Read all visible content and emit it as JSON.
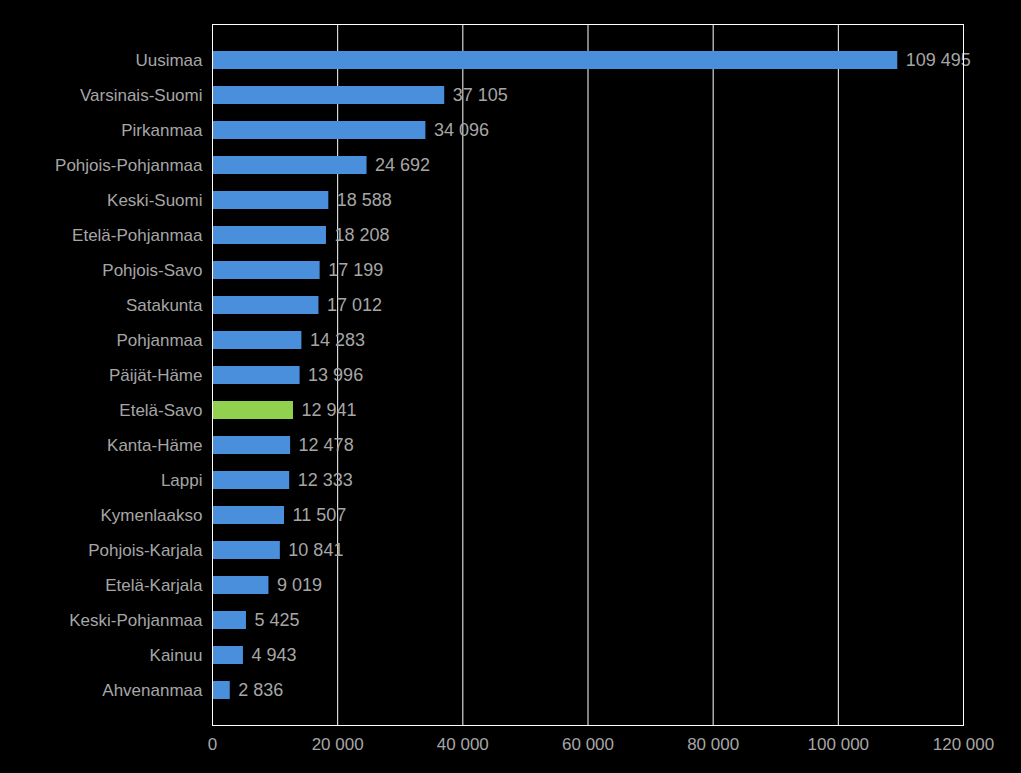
{
  "chart_data": {
    "type": "bar",
    "orientation": "horizontal",
    "categories": [
      "Uusimaa",
      "Varsinais-Suomi",
      "Pirkanmaa",
      "Pohjois-Pohjanmaa",
      "Keski-Suomi",
      "Etelä-Pohjanmaa",
      "Pohjois-Savo",
      "Satakunta",
      "Pohjanmaa",
      "Päijät-Häme",
      "Etelä-Savo",
      "Kanta-Häme",
      "Lappi",
      "Kymenlaakso",
      "Pohjois-Karjala",
      "Etelä-Karjala",
      "Keski-Pohjanmaa",
      "Kainuu",
      "Ahvenanmaa"
    ],
    "values": [
      109495,
      37105,
      34096,
      24692,
      18588,
      18208,
      17199,
      17012,
      14283,
      13996,
      12941,
      12478,
      12333,
      11507,
      10841,
      9019,
      5425,
      4943,
      2836
    ],
    "value_labels": [
      "109 495",
      "37 105",
      "34 096",
      "24 692",
      "18 588",
      "18 208",
      "17 199",
      "17 012",
      "14 283",
      "13 996",
      "12 941",
      "12 478",
      "12 333",
      "11 507",
      "10 841",
      "9 019",
      "5 425",
      "4 943",
      "2 836"
    ],
    "colors": [
      "#4a8fdb",
      "#4a8fdb",
      "#4a8fdb",
      "#4a8fdb",
      "#4a8fdb",
      "#4a8fdb",
      "#4a8fdb",
      "#4a8fdb",
      "#4a8fdb",
      "#4a8fdb",
      "#92d050",
      "#4a8fdb",
      "#4a8fdb",
      "#4a8fdb",
      "#4a8fdb",
      "#4a8fdb",
      "#4a8fdb",
      "#4a8fdb",
      "#4a8fdb"
    ],
    "xlim": [
      0,
      120000
    ],
    "xticks": [
      0,
      {
        "value": 20000,
        "label": "20 000"
      },
      {
        "value": 40000,
        "label": "40 000"
      },
      {
        "value": 60000,
        "label": "60 000"
      },
      {
        "value": 80000,
        "label": "80 000"
      },
      {
        "value": 100000,
        "label": "100 000"
      },
      {
        "value": 120000,
        "label": "120 000"
      }
    ],
    "grid": true,
    "data_labels": true
  }
}
